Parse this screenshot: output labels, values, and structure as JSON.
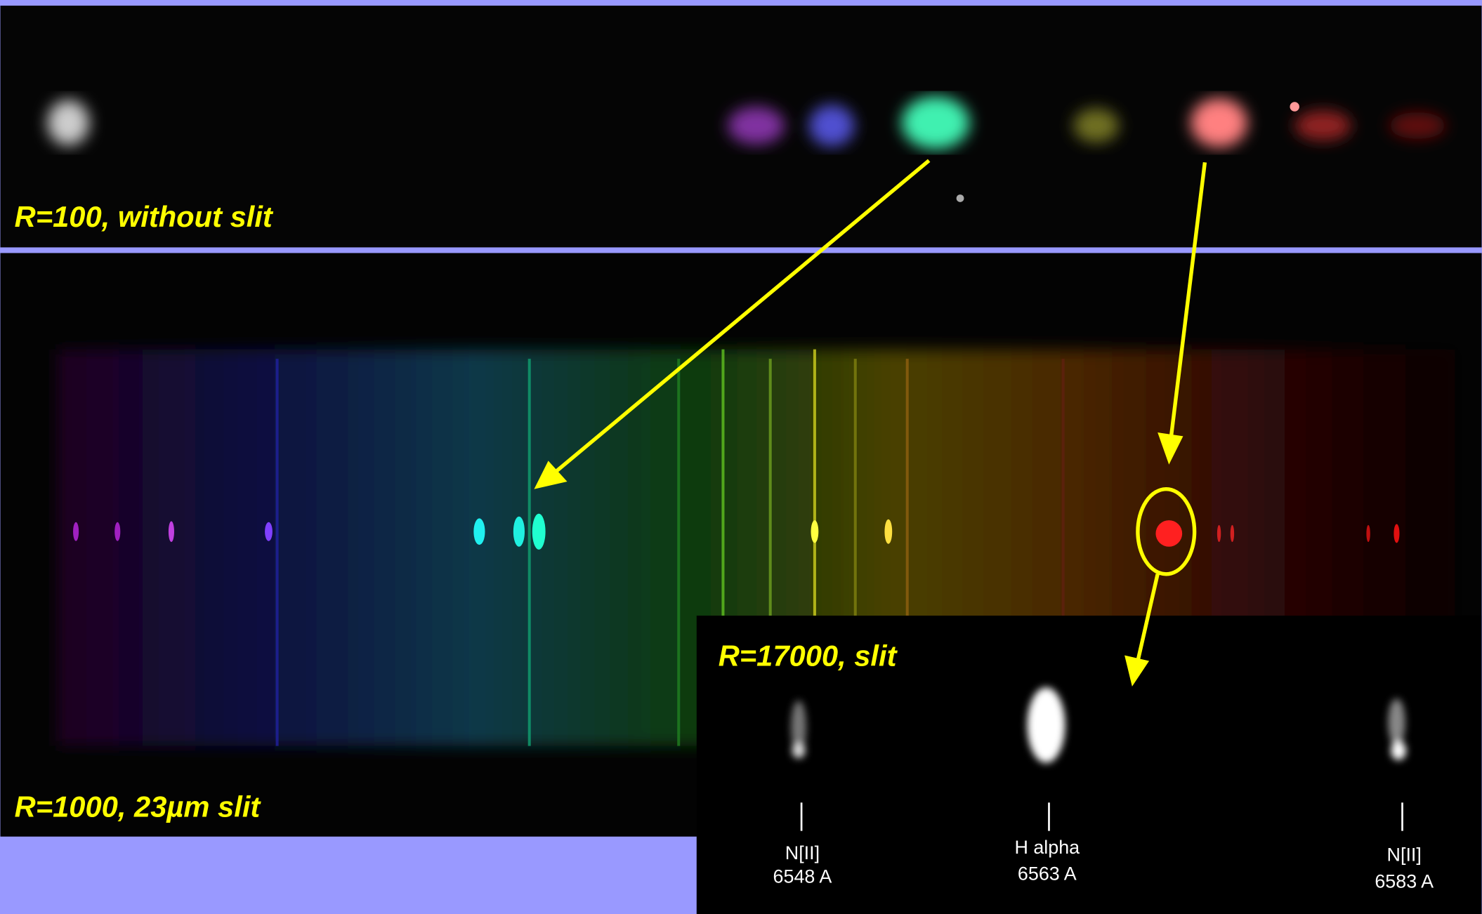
{
  "panels": [
    {
      "label": "R=100, without slit"
    },
    {
      "label": "R=1000, 23µm slit"
    },
    {
      "label": "R=17000, slit",
      "lines": [
        {
          "name": "N[II]",
          "wavelength": "6548 A"
        },
        {
          "name": "H alpha",
          "wavelength": "6563 A"
        },
        {
          "name": "N[II]",
          "wavelength": "6583 A"
        }
      ]
    }
  ]
}
